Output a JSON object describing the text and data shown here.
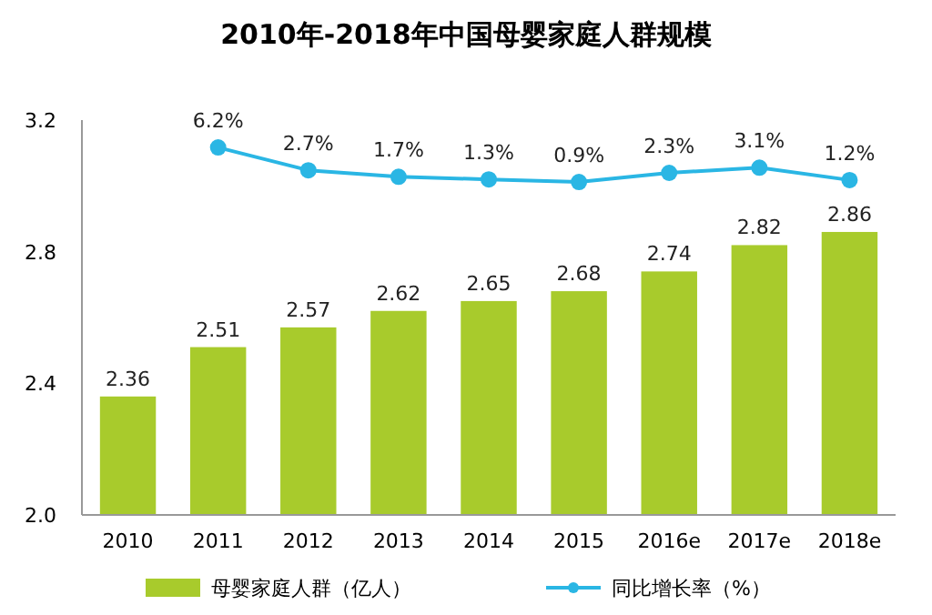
{
  "chart_data": {
    "type": "bar",
    "title": "2010年-2018年中国母婴家庭人群规模",
    "categories": [
      "2010",
      "2011",
      "2012",
      "2013",
      "2014",
      "2015",
      "2016e",
      "2017e",
      "2018e"
    ],
    "series": [
      {
        "name": "母婴家庭人群（亿人）",
        "color": "#a8cb2c",
        "values": [
          2.36,
          2.51,
          2.57,
          2.62,
          2.65,
          2.68,
          2.74,
          2.82,
          2.86
        ],
        "value_labels": [
          "2.36",
          "2.51",
          "2.57",
          "2.62",
          "2.65",
          "2.68",
          "2.74",
          "2.82",
          "2.86"
        ]
      },
      {
        "name": "同比增长率（%）",
        "type": "line",
        "axis": "y2",
        "color": "#2ab6e4",
        "marker": "circle",
        "values": [
          null,
          6.2,
          2.7,
          1.7,
          1.3,
          0.9,
          2.3,
          3.1,
          1.2
        ],
        "value_labels": [
          null,
          "6.2%",
          "2.7%",
          "1.7%",
          "1.3%",
          "0.9%",
          "2.3%",
          "3.1%",
          "1.2%"
        ]
      }
    ],
    "ylim": [
      2.0,
      3.2
    ],
    "yticks": [
      {
        "value": 2.0,
        "label": "2.0"
      },
      2.4,
      2.8,
      3.2
    ],
    "y2lim": [
      -50.2,
      10.4
    ],
    "legend": "bottom",
    "grid": false
  }
}
